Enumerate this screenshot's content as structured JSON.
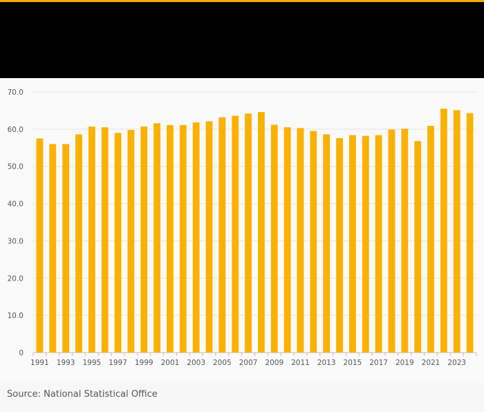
{
  "source_label": "Source: National Statistical Office",
  "colors": {
    "bar": "#fbb100",
    "accent": "#f5a800",
    "header_bg": "#000000",
    "grid": "#e3e3e3",
    "axis_text": "#555555"
  },
  "chart_data": {
    "type": "bar",
    "title": "",
    "xlabel": "",
    "ylabel": "",
    "ylim": [
      0,
      70
    ],
    "yticks": [
      "0",
      "10.0",
      "20.0",
      "30.0",
      "40.0",
      "50.0",
      "60.0",
      "70.0"
    ],
    "grid": true,
    "categories": [
      1991,
      1992,
      1993,
      1994,
      1995,
      1996,
      1997,
      1998,
      1999,
      2000,
      2001,
      2002,
      2003,
      2004,
      2005,
      2006,
      2007,
      2008,
      2009,
      2010,
      2011,
      2012,
      2013,
      2014,
      2015,
      2016,
      2017,
      2018,
      2019,
      2020,
      2021,
      2022,
      2023,
      2024
    ],
    "x_tick_labels": [
      "1991",
      "",
      "1993",
      "",
      "1995",
      "",
      "1997",
      "",
      "1999",
      "",
      "2001",
      "",
      "2003",
      "",
      "2005",
      "",
      "2007",
      "",
      "2009",
      "",
      "2011",
      "",
      "2013",
      "",
      "2015",
      "",
      "2017",
      "",
      "2019",
      "",
      "2021",
      "",
      "2023",
      ""
    ],
    "values": [
      57.5,
      56.0,
      56.0,
      58.6,
      60.7,
      60.5,
      59.0,
      59.8,
      60.7,
      61.6,
      61.1,
      61.1,
      61.8,
      62.1,
      63.2,
      63.6,
      64.2,
      64.6,
      61.2,
      60.5,
      60.3,
      59.5,
      58.6,
      57.6,
      58.4,
      58.2,
      58.4,
      59.9,
      60.1,
      56.8,
      60.9,
      65.5,
      65.1,
      64.3
    ]
  }
}
